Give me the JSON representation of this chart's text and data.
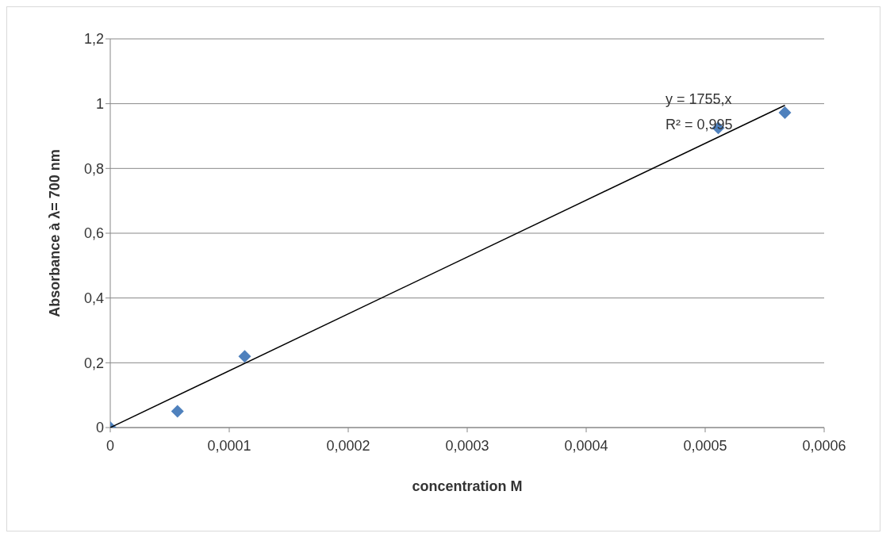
{
  "chart_data": {
    "type": "scatter",
    "xlabel": "concentration M",
    "ylabel": "Absorbance à λ= 700 nm",
    "x": [
      0,
      5.65e-05,
      0.000113,
      0.000511,
      0.000567
    ],
    "series": [
      {
        "color": "#4f81bd",
        "values": [
          0,
          0.05,
          0.22,
          0.925,
          0.972
        ],
        "marker": "diamond"
      },
      {
        "type": "line",
        "color": "#000000",
        "x": [
          0,
          0.000567
        ],
        "values": [
          0,
          0.995
        ],
        "marker": "none"
      }
    ],
    "xlim": [
      0,
      0.0006
    ],
    "xticks": [
      0,
      {
        "value": 0.0001,
        "label": "0,0001"
      },
      {
        "value": 0.0002,
        "label": "0,0002"
      },
      {
        "value": 0.0003,
        "label": "0,0003"
      },
      {
        "value": 0.0004,
        "label": "0,0004"
      },
      {
        "value": 0.0005,
        "label": "0,0005"
      },
      {
        "value": 0.0006,
        "label": "0,0006"
      }
    ],
    "ylim": [
      0,
      1.2
    ],
    "yticks": [
      0,
      {
        "value": 0.2,
        "label": "0,2"
      },
      {
        "value": 0.4,
        "label": "0,4"
      },
      {
        "value": 0.6,
        "label": "0,6"
      },
      {
        "value": 0.8,
        "label": "0,8"
      },
      1,
      {
        "value": 1.2,
        "label": "1,2"
      }
    ],
    "grid": "y",
    "annotations": [
      "y = 1755,x",
      "R² = 0,995"
    ]
  }
}
